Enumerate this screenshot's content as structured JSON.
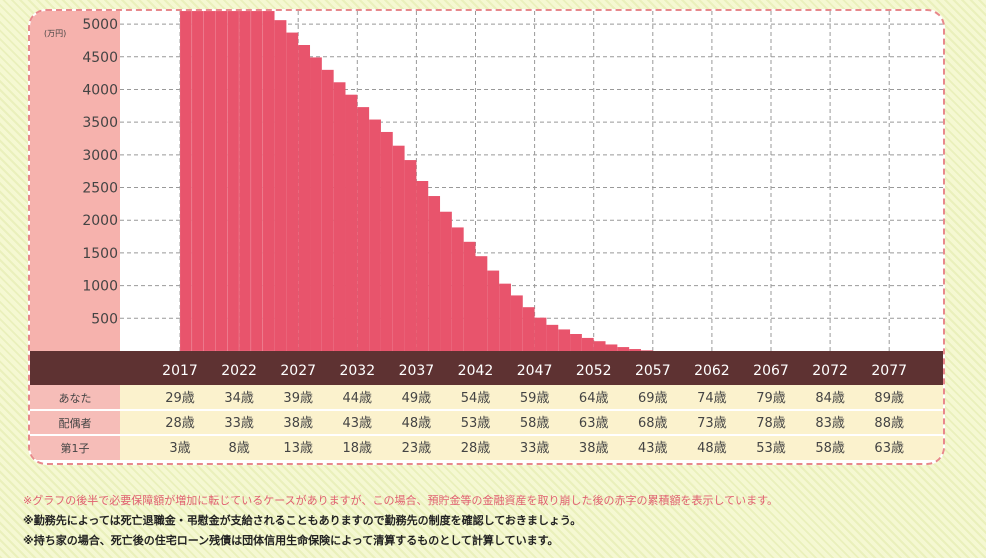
{
  "chart_data": {
    "type": "bar",
    "unit_label": "(万円)",
    "ylim": [
      0,
      5200
    ],
    "yticks": [
      500,
      1000,
      1500,
      2000,
      2500,
      3000,
      3500,
      4000,
      4500,
      5000
    ],
    "grid": true,
    "x_labels": [
      "2017",
      "2022",
      "2027",
      "2032",
      "2037",
      "2042",
      "2047",
      "2052",
      "2057",
      "2062",
      "2067",
      "2072",
      "2077"
    ],
    "years": [
      2017,
      2018,
      2019,
      2020,
      2021,
      2022,
      2023,
      2024,
      2025,
      2026,
      2027,
      2028,
      2029,
      2030,
      2031,
      2032,
      2033,
      2034,
      2035,
      2036,
      2037,
      2038,
      2039,
      2040,
      2041,
      2042,
      2043,
      2044,
      2045,
      2046,
      2047,
      2048,
      2049,
      2050,
      2051,
      2052,
      2053,
      2054,
      2055,
      2056,
      2057
    ],
    "values": [
      5200,
      5200,
      5200,
      5200,
      5200,
      5200,
      5200,
      5200,
      5060,
      4870,
      4680,
      4490,
      4300,
      4110,
      3920,
      3730,
      3540,
      3350,
      3140,
      2920,
      2600,
      2370,
      2130,
      1890,
      1670,
      1450,
      1230,
      1030,
      850,
      670,
      510,
      400,
      330,
      260,
      200,
      150,
      100,
      60,
      30,
      10,
      0
    ],
    "bar_color": "#e8546c"
  },
  "table": {
    "rows": [
      {
        "label": "あなた",
        "values": [
          "29歳",
          "34歳",
          "39歳",
          "44歳",
          "49歳",
          "54歳",
          "59歳",
          "64歳",
          "69歳",
          "74歳",
          "79歳",
          "84歳",
          "89歳"
        ]
      },
      {
        "label": "配偶者",
        "values": [
          "28歳",
          "33歳",
          "38歳",
          "43歳",
          "48歳",
          "53歳",
          "58歳",
          "63歳",
          "68歳",
          "73歳",
          "78歳",
          "83歳",
          "88歳"
        ]
      },
      {
        "label": "第1子",
        "values": [
          "3歳",
          "8歳",
          "13歳",
          "18歳",
          "23歳",
          "28歳",
          "33歳",
          "38歳",
          "43歳",
          "48歳",
          "53歳",
          "58歳",
          "63歳"
        ]
      }
    ]
  },
  "notes": [
    "※グラフの後半で必要保障額が増加に転じているケースがありますが、この場合、預貯金等の金融資産を取り崩した後の赤字の累積額を表示しています。",
    "※勤務先によっては死亡退職金・弔慰金が支給されることもありますので勤務先の制度を確認しておきましょう。",
    "※持ち家の場合、死亡後の住宅ローン残債は団体信用生命保険によって清算するものとして計算しています。"
  ],
  "colors": {
    "axis_bg": "#f6b2ad",
    "band": "#5e3232",
    "table_bg": "#fbf2cd",
    "row_label_bg": "#f6bdb8"
  }
}
